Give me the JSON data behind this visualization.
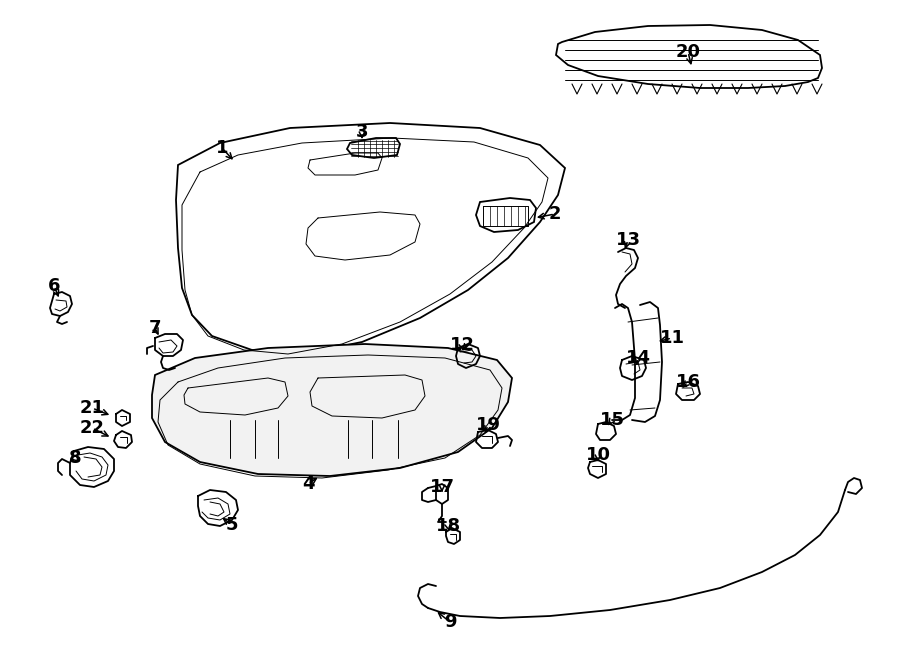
{
  "bg_color": "#ffffff",
  "line_color": "#000000",
  "lw_main": 1.3,
  "lw_thin": 0.7,
  "label_size": 13
}
